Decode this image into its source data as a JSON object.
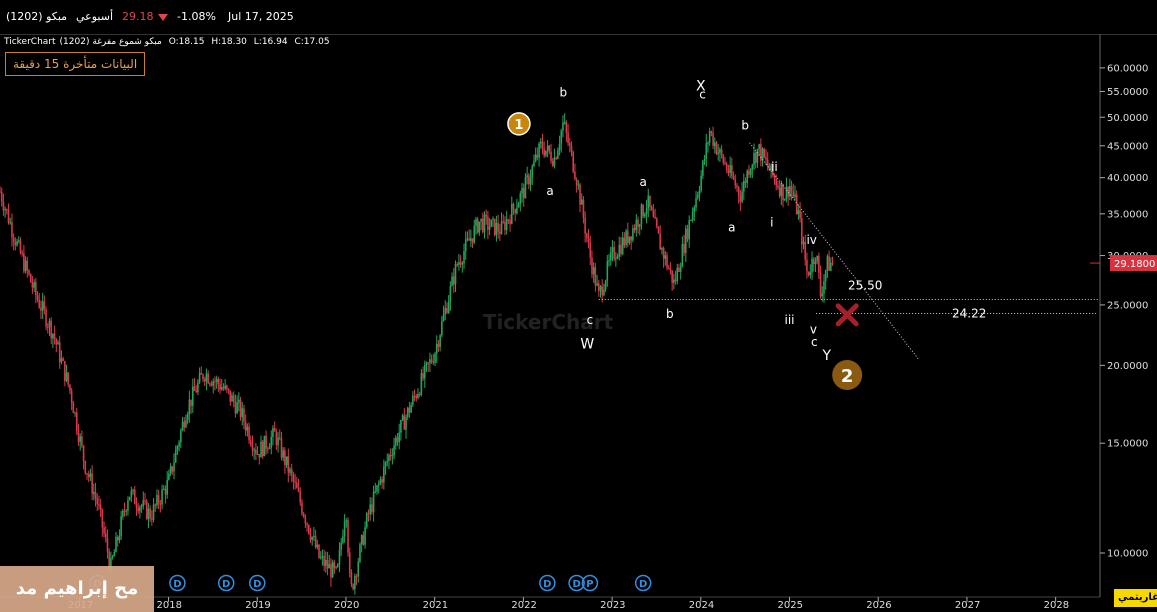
{
  "header": {
    "symbol": "(1202) مبكو",
    "period": "أسبوعي",
    "price": "29.18",
    "change_pct": "-1.08%",
    "date": "Jul 17, 2025"
  },
  "ohlc": {
    "source": "TickerChart",
    "name": "(1202) مبكو شموع مفرغة",
    "open": "O:18.15",
    "high": "H:18.30",
    "low": "L:16.94",
    "close": "C:17.05"
  },
  "delay_notice": "البيانات متأخرة 15 دقيقة",
  "log_label": "لوغاريتمي",
  "watermark": "مح إبراهيم مد",
  "colors": {
    "background": "#000000",
    "up": "#22a85a",
    "down": "#d93a4a",
    "price_tag": "#d8323f",
    "wave_circle": "#c8860a",
    "wave_circle_2": "#8a5a10",
    "x_mark": "#a4202a",
    "dividend": "#2f8fe0"
  },
  "chart_data": {
    "type": "candlestick",
    "scale": "log",
    "ylim": [
      8.5,
      68
    ],
    "yticks": [
      {
        "v": 60,
        "label": "60.0000"
      },
      {
        "v": 55,
        "label": "55.0000"
      },
      {
        "v": 50,
        "label": "50.0000"
      },
      {
        "v": 45,
        "label": "45.0000"
      },
      {
        "v": 40,
        "label": "40.0000"
      },
      {
        "v": 35,
        "label": "35.0000"
      },
      {
        "v": 30,
        "label": "30.0000"
      },
      {
        "v": 25,
        "label": "25.0000"
      },
      {
        "v": 20,
        "label": "20.0000"
      },
      {
        "v": 15,
        "label": "15.0000"
      },
      {
        "v": 10,
        "label": "10.0000"
      }
    ],
    "xlim": [
      2016.1,
      2028.5
    ],
    "xticks": [
      {
        "v": 2017,
        "label": "2017"
      },
      {
        "v": 2018,
        "label": "2018"
      },
      {
        "v": 2019,
        "label": "2019"
      },
      {
        "v": 2020,
        "label": "2020"
      },
      {
        "v": 2021,
        "label": "2021"
      },
      {
        "v": 2022,
        "label": "2022"
      },
      {
        "v": 2023,
        "label": "2023"
      },
      {
        "v": 2024,
        "label": "2024"
      },
      {
        "v": 2025,
        "label": "2025"
      },
      {
        "v": 2026,
        "label": "2026"
      },
      {
        "v": 2027,
        "label": "2027"
      },
      {
        "v": 2028,
        "label": "2028"
      }
    ],
    "price_path": [
      [
        2016.1,
        38.0
      ],
      [
        2016.3,
        31.0
      ],
      [
        2016.5,
        26.0
      ],
      [
        2016.7,
        22.5
      ],
      [
        2016.9,
        18.0
      ],
      [
        2017.05,
        14.0
      ],
      [
        2017.2,
        12.0
      ],
      [
        2017.35,
        9.5
      ],
      [
        2017.55,
        12.5
      ],
      [
        2017.8,
        11.5
      ],
      [
        2018.0,
        13.0
      ],
      [
        2018.2,
        17.0
      ],
      [
        2018.4,
        19.5
      ],
      [
        2018.6,
        18.5
      ],
      [
        2018.8,
        17.0
      ],
      [
        2019.0,
        14.5
      ],
      [
        2019.2,
        15.5
      ],
      [
        2019.45,
        12.5
      ],
      [
        2019.7,
        9.8
      ],
      [
        2019.9,
        9.2
      ],
      [
        2020.0,
        12.0
      ],
      [
        2020.05,
        8.6
      ],
      [
        2020.25,
        11.5
      ],
      [
        2020.5,
        14.5
      ],
      [
        2020.75,
        17.5
      ],
      [
        2021.0,
        21.0
      ],
      [
        2021.25,
        29.0
      ],
      [
        2021.5,
        34.0
      ],
      [
        2021.75,
        33.0
      ],
      [
        2022.0,
        38.0
      ],
      [
        2022.2,
        45.0
      ],
      [
        2022.35,
        43.0
      ],
      [
        2022.45,
        49.0
      ],
      [
        2022.6,
        40.0
      ],
      [
        2022.75,
        30.0
      ],
      [
        2022.85,
        25.8
      ],
      [
        2023.0,
        30.0
      ],
      [
        2023.2,
        32.5
      ],
      [
        2023.4,
        36.5
      ],
      [
        2023.55,
        31.0
      ],
      [
        2023.7,
        27.0
      ],
      [
        2023.85,
        33.0
      ],
      [
        2024.0,
        40.0
      ],
      [
        2024.1,
        47.5
      ],
      [
        2024.2,
        44.0
      ],
      [
        2024.35,
        40.0
      ],
      [
        2024.45,
        37.5
      ],
      [
        2024.55,
        42.0
      ],
      [
        2024.65,
        44.5
      ],
      [
        2024.8,
        40.5
      ],
      [
        2024.95,
        37.5
      ],
      [
        2025.0,
        39.0
      ],
      [
        2025.1,
        35.0
      ],
      [
        2025.2,
        28.0
      ],
      [
        2025.3,
        30.5
      ],
      [
        2025.35,
        26.0
      ],
      [
        2025.42,
        29.0
      ],
      [
        2025.5,
        29.18
      ]
    ],
    "horizontal_lines": [
      {
        "x0": 2022.85,
        "y": 25.5,
        "label": "25.50"
      },
      {
        "x0": 2025.3,
        "y": 24.22,
        "label": "24.22"
      }
    ],
    "trendline": {
      "x0": 2024.55,
      "y0": 45.5,
      "x1": 2026.45,
      "y1": 20.5
    },
    "current_price": {
      "v": 29.18,
      "label": "29.1800"
    },
    "wave_labels": [
      {
        "x": 2022.45,
        "y": 54.0,
        "t": "b"
      },
      {
        "x": 2022.3,
        "y": 37.5,
        "t": "a"
      },
      {
        "x": 2022.75,
        "y": 23.3,
        "t": "c"
      },
      {
        "x": 2022.72,
        "y": 21.3,
        "t": "W"
      },
      {
        "x": 2023.35,
        "y": 38.8,
        "t": "a"
      },
      {
        "x": 2023.65,
        "y": 23.8,
        "t": "b"
      },
      {
        "x": 2024.0,
        "y": 55.2,
        "t": "X"
      },
      {
        "x": 2024.02,
        "y": 53.6,
        "t": "c"
      },
      {
        "x": 2024.35,
        "y": 32.8,
        "t": "a"
      },
      {
        "x": 2024.5,
        "y": 47.8,
        "t": "b"
      },
      {
        "x": 2024.83,
        "y": 41.0,
        "t": "ii"
      },
      {
        "x": 2024.8,
        "y": 33.4,
        "t": "i"
      },
      {
        "x": 2025.25,
        "y": 31.3,
        "t": "iv"
      },
      {
        "x": 2025.0,
        "y": 23.3,
        "t": "iii"
      },
      {
        "x": 2025.27,
        "y": 22.5,
        "t": "v"
      },
      {
        "x": 2025.28,
        "y": 21.5,
        "t": "c"
      },
      {
        "x": 2025.42,
        "y": 20.4,
        "t": "Y"
      }
    ],
    "wave_circles": [
      {
        "x": 2021.95,
        "y": 48.8,
        "t": "1"
      },
      {
        "x": 2025.65,
        "y": 19.3,
        "t": "2"
      }
    ],
    "target_mark": {
      "x": 2025.65,
      "y": 24.1
    },
    "dividend_markers": [
      {
        "x": 2017.2,
        "t": "D"
      },
      {
        "x": 2018.1,
        "t": "D"
      },
      {
        "x": 2018.65,
        "t": "D"
      },
      {
        "x": 2019.0,
        "t": "D"
      },
      {
        "x": 2022.27,
        "t": "D"
      },
      {
        "x": 2022.6,
        "t": "D"
      },
      {
        "x": 2022.75,
        "t": "P"
      },
      {
        "x": 2023.35,
        "t": "D"
      }
    ],
    "source_watermark": "TickerChart"
  }
}
